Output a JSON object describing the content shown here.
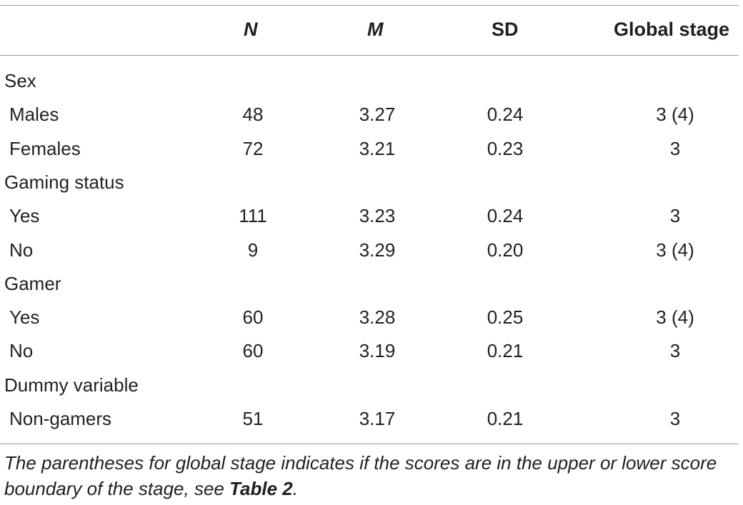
{
  "table": {
    "headers": {
      "n": "N",
      "m": "M",
      "sd": "SD",
      "global_stage": "Global stage"
    },
    "rows": [
      {
        "label": "Sex",
        "type": "group",
        "n": "",
        "m": "",
        "sd": "",
        "gs": ""
      },
      {
        "label": "Males",
        "type": "sub",
        "n": "48",
        "m": "3.27",
        "sd": "0.24",
        "gs": "3 (4)"
      },
      {
        "label": "Females",
        "type": "sub",
        "n": "72",
        "m": "3.21",
        "sd": "0.23",
        "gs": "3"
      },
      {
        "label": "Gaming status",
        "type": "group",
        "n": "",
        "m": "",
        "sd": "",
        "gs": ""
      },
      {
        "label": "Yes",
        "type": "sub",
        "n": "111",
        "m": "3.23",
        "sd": "0.24",
        "gs": "3"
      },
      {
        "label": "No",
        "type": "sub",
        "n": "9",
        "m": "3.29",
        "sd": "0.20",
        "gs": "3 (4)"
      },
      {
        "label": "Gamer",
        "type": "group",
        "n": "",
        "m": "",
        "sd": "",
        "gs": ""
      },
      {
        "label": "Yes",
        "type": "sub",
        "n": "60",
        "m": "3.28",
        "sd": "0.25",
        "gs": "3 (4)"
      },
      {
        "label": "No",
        "type": "sub",
        "n": "60",
        "m": "3.19",
        "sd": "0.21",
        "gs": "3"
      },
      {
        "label": "Dummy variable",
        "type": "group",
        "n": "",
        "m": "",
        "sd": "",
        "gs": ""
      },
      {
        "label": "Non-gamers",
        "type": "sub",
        "n": "51",
        "m": "3.17",
        "sd": "0.21",
        "gs": "3"
      }
    ]
  },
  "note": {
    "text": "The parentheses for global stage indicates if the scores are in the upper or lower score boundary of the stage, see ",
    "ref": "Table 2",
    "end": "."
  }
}
